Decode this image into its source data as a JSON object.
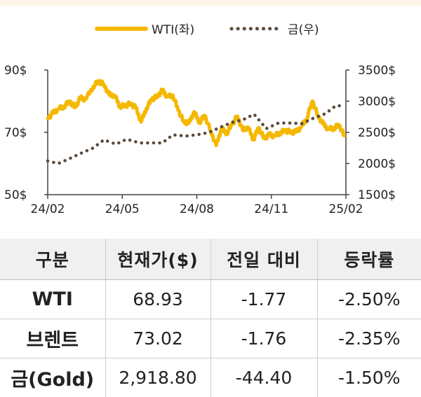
{
  "chart_data": {
    "type": "line",
    "legend": {
      "placement": "top-center"
    },
    "x_ticks": [
      "24/02",
      "24/05",
      "24/08",
      "24/11",
      "25/02"
    ],
    "y_left": {
      "ticks": [
        "90$",
        "70$",
        "50$"
      ],
      "ylim": [
        50,
        90
      ]
    },
    "y_right": {
      "ticks": [
        "3500$",
        "3000$",
        "2500$",
        "2000$",
        "1500$"
      ],
      "ylim": [
        1500,
        3500
      ]
    },
    "grid": false,
    "series": [
      {
        "name": "WTI(좌)",
        "axis": "left",
        "style": "solid",
        "color": "#f5b800",
        "points": [
          [
            "2024-02-01",
            74.5
          ],
          [
            "2024-02-08",
            76.2
          ],
          [
            "2024-02-15",
            77.5
          ],
          [
            "2024-02-22",
            78.3
          ],
          [
            "2024-03-01",
            79.9
          ],
          [
            "2024-03-08",
            78.0
          ],
          [
            "2024-03-15",
            81.0
          ],
          [
            "2024-03-22",
            80.6
          ],
          [
            "2024-04-01",
            84.7
          ],
          [
            "2024-04-08",
            86.4
          ],
          [
            "2024-04-15",
            85.4
          ],
          [
            "2024-04-22",
            82.0
          ],
          [
            "2024-04-29",
            81.9
          ],
          [
            "2024-05-06",
            78.4
          ],
          [
            "2024-05-13",
            78.5
          ],
          [
            "2024-05-20",
            79.3
          ],
          [
            "2024-05-27",
            77.9
          ],
          [
            "2024-06-03",
            73.3
          ],
          [
            "2024-06-10",
            77.7
          ],
          [
            "2024-06-17",
            80.6
          ],
          [
            "2024-06-24",
            81.5
          ],
          [
            "2024-07-01",
            83.4
          ],
          [
            "2024-07-08",
            81.4
          ],
          [
            "2024-07-15",
            81.9
          ],
          [
            "2024-07-22",
            77.1
          ],
          [
            "2024-07-29",
            73.5
          ],
          [
            "2024-08-05",
            72.9
          ],
          [
            "2024-08-12",
            76.6
          ],
          [
            "2024-08-19",
            73.2
          ],
          [
            "2024-08-26",
            75.4
          ],
          [
            "2024-09-03",
            70.3
          ],
          [
            "2024-09-10",
            65.8
          ],
          [
            "2024-09-17",
            71.2
          ],
          [
            "2024-09-24",
            69.7
          ],
          [
            "2024-10-01",
            72.6
          ],
          [
            "2024-10-08",
            75.2
          ],
          [
            "2024-10-15",
            70.6
          ],
          [
            "2024-10-22",
            71.7
          ],
          [
            "2024-10-29",
            67.7
          ],
          [
            "2024-11-05",
            71.5
          ],
          [
            "2024-11-12",
            68.1
          ],
          [
            "2024-11-19",
            69.2
          ],
          [
            "2024-11-26",
            68.8
          ],
          [
            "2024-12-03",
            69.9
          ],
          [
            "2024-12-10",
            70.6
          ],
          [
            "2024-12-17",
            70.1
          ],
          [
            "2024-12-24",
            70.1
          ],
          [
            "2024-12-31",
            71.7
          ],
          [
            "2025-01-07",
            74.3
          ],
          [
            "2025-01-15",
            80.0
          ],
          [
            "2025-01-22",
            75.4
          ],
          [
            "2025-01-29",
            72.6
          ],
          [
            "2025-02-05",
            71.0
          ],
          [
            "2025-02-12",
            71.4
          ],
          [
            "2025-02-19",
            72.3
          ],
          [
            "2025-02-26",
            68.9
          ]
        ]
      },
      {
        "name": "금(우)",
        "axis": "right",
        "style": "dotted",
        "color": "#5a4a3a",
        "points": [
          [
            "2024-02-01",
            2040
          ],
          [
            "2024-02-15",
            2000
          ],
          [
            "2024-03-01",
            2080
          ],
          [
            "2024-03-15",
            2160
          ],
          [
            "2024-04-01",
            2250
          ],
          [
            "2024-04-15",
            2380
          ],
          [
            "2024-05-01",
            2310
          ],
          [
            "2024-05-15",
            2390
          ],
          [
            "2024-06-01",
            2330
          ],
          [
            "2024-06-15",
            2330
          ],
          [
            "2024-07-01",
            2330
          ],
          [
            "2024-07-15",
            2460
          ],
          [
            "2024-08-01",
            2440
          ],
          [
            "2024-08-15",
            2460
          ],
          [
            "2024-09-01",
            2500
          ],
          [
            "2024-09-15",
            2580
          ],
          [
            "2024-10-01",
            2660
          ],
          [
            "2024-10-15",
            2700
          ],
          [
            "2024-10-30",
            2790
          ],
          [
            "2024-11-15",
            2560
          ],
          [
            "2024-12-01",
            2650
          ],
          [
            "2024-12-15",
            2650
          ],
          [
            "2025-01-01",
            2640
          ],
          [
            "2025-01-15",
            2720
          ],
          [
            "2025-02-01",
            2800
          ],
          [
            "2025-02-15",
            2930
          ],
          [
            "2025-02-26",
            2919
          ]
        ]
      }
    ]
  },
  "table": {
    "headers": [
      "구분",
      "현재가($)",
      "전일 대비",
      "등락률"
    ],
    "rows": [
      [
        "WTI",
        "68.93",
        "-1.77",
        "-2.50%"
      ],
      [
        "브렌트",
        "73.02",
        "-1.76",
        "-2.35%"
      ],
      [
        "금(Gold)",
        "2,918.80",
        "-44.40",
        "-1.50%"
      ]
    ]
  }
}
